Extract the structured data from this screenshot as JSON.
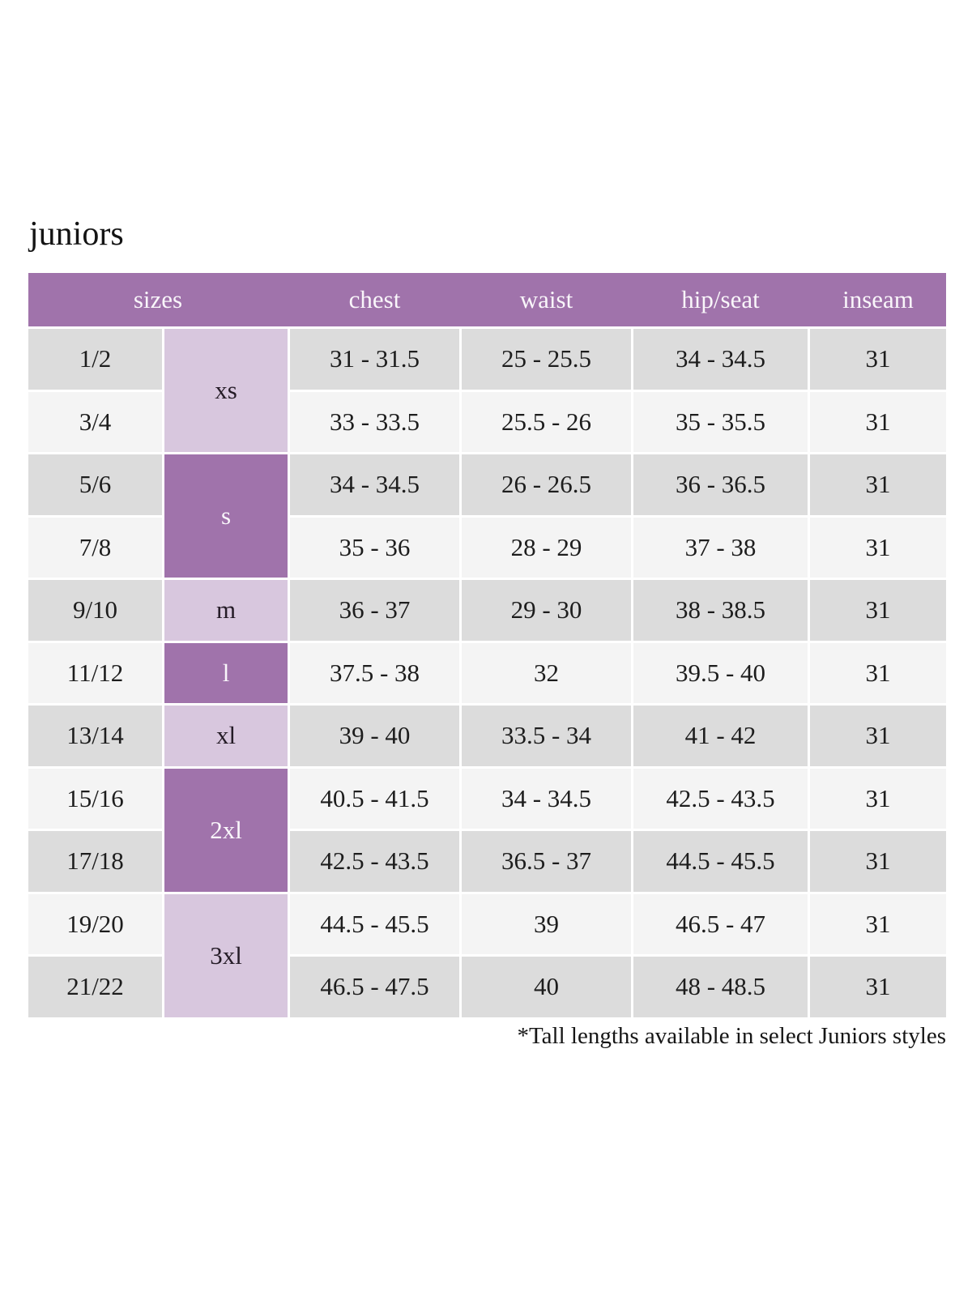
{
  "page": {
    "title": "juniors",
    "footnote": "*Tall lengths available in select Juniors styles"
  },
  "colors": {
    "header_purple": "#a073ab",
    "size_letter_light_purple": "#d8c7de",
    "size_letter_dark_purple": "#a073ab",
    "row_gray": "#dcdcdc",
    "row_light": "#f4f4f4",
    "header_text": "#f9f6fa"
  },
  "table": {
    "headers": [
      "sizes",
      "chest",
      "waist",
      "hip/seat",
      "inseam"
    ],
    "rows": [
      {
        "size": "1/2",
        "letter": {
          "label": "xs",
          "span": 2,
          "variant": "light-purple"
        },
        "chest": "31 - 31.5",
        "waist": "25 - 25.5",
        "hip_seat": "34 - 34.5",
        "inseam": "31"
      },
      {
        "size": "3/4",
        "chest": "33 - 33.5",
        "waist": "25.5 - 26",
        "hip_seat": "35 - 35.5",
        "inseam": "31"
      },
      {
        "size": "5/6",
        "letter": {
          "label": "s",
          "span": 2,
          "variant": "dark-purple"
        },
        "chest": "34 - 34.5",
        "waist": "26 - 26.5",
        "hip_seat": "36 - 36.5",
        "inseam": "31"
      },
      {
        "size": "7/8",
        "chest": "35 - 36",
        "waist": "28 - 29",
        "hip_seat": "37 - 38",
        "inseam": "31"
      },
      {
        "size": "9/10",
        "letter": {
          "label": "m",
          "span": 1,
          "variant": "light-purple"
        },
        "chest": "36 - 37",
        "waist": "29 - 30",
        "hip_seat": "38 - 38.5",
        "inseam": "31"
      },
      {
        "size": "11/12",
        "letter": {
          "label": "l",
          "span": 1,
          "variant": "dark-purple"
        },
        "chest": "37.5 - 38",
        "waist": "32",
        "hip_seat": "39.5 - 40",
        "inseam": "31"
      },
      {
        "size": "13/14",
        "letter": {
          "label": "xl",
          "span": 1,
          "variant": "light-purple"
        },
        "chest": "39 - 40",
        "waist": "33.5 - 34",
        "hip_seat": "41 - 42",
        "inseam": "31"
      },
      {
        "size": "15/16",
        "letter": {
          "label": "2xl",
          "span": 2,
          "variant": "dark-purple"
        },
        "chest": "40.5 - 41.5",
        "waist": "34 - 34.5",
        "hip_seat": "42.5 - 43.5",
        "inseam": "31"
      },
      {
        "size": "17/18",
        "chest": "42.5 - 43.5",
        "waist": "36.5 - 37",
        "hip_seat": "44.5 - 45.5",
        "inseam": "31"
      },
      {
        "size": "19/20",
        "letter": {
          "label": "3xl",
          "span": 2,
          "variant": "light-purple"
        },
        "chest": "44.5 - 45.5",
        "waist": "39",
        "hip_seat": "46.5 - 47",
        "inseam": "31"
      },
      {
        "size": "21/22",
        "chest": "46.5 - 47.5",
        "waist": "40",
        "hip_seat": "48 - 48.5",
        "inseam": "31"
      }
    ]
  }
}
